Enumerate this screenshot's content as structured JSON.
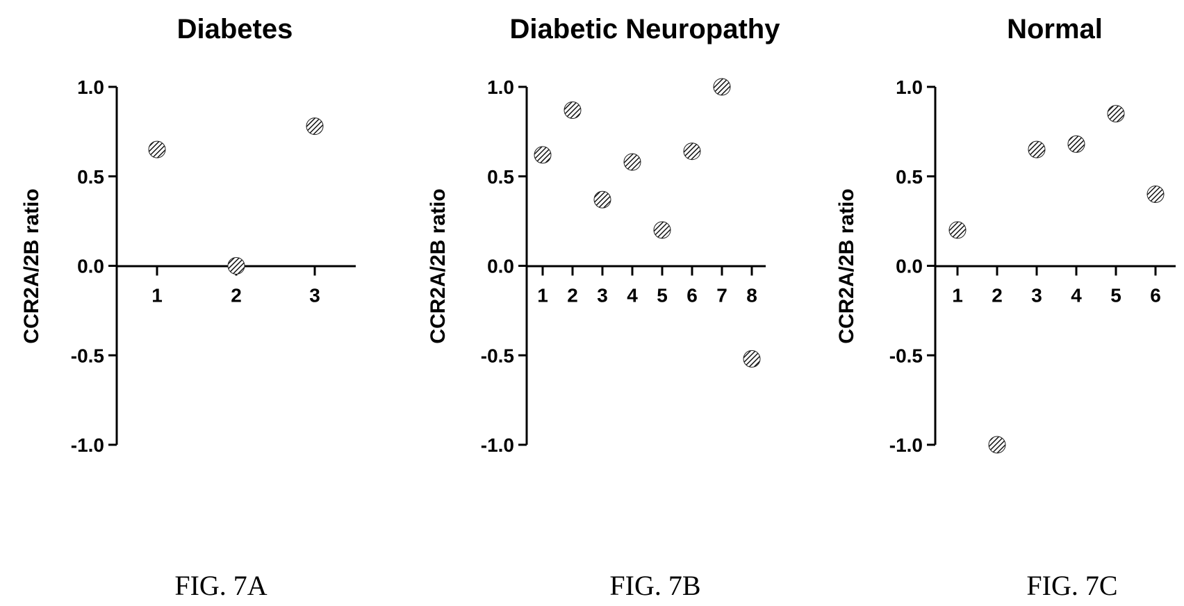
{
  "chart_data": [
    {
      "type": "scatter",
      "title": "Diabetes",
      "ylabel": "CCR2A/2B ratio",
      "xlabel": "",
      "x": [
        1,
        2,
        3
      ],
      "y": [
        0.65,
        0.0,
        0.78
      ],
      "ylim": [
        -1.0,
        1.0
      ],
      "yticks": [
        "1.0",
        "0.5",
        "0.0",
        "-0.5",
        "-1.0"
      ],
      "xticks": [
        "1",
        "2",
        "3"
      ],
      "caption": "FIG. 7A"
    },
    {
      "type": "scatter",
      "title": "Diabetic Neuropathy",
      "ylabel": "CCR2A/2B ratio",
      "xlabel": "",
      "x": [
        1,
        2,
        3,
        4,
        5,
        6,
        7,
        8
      ],
      "y": [
        0.62,
        0.87,
        0.37,
        0.58,
        0.2,
        0.64,
        1.0,
        -0.52
      ],
      "ylim": [
        -1.0,
        1.0
      ],
      "yticks": [
        "1.0",
        "0.5",
        "0.0",
        "-0.5",
        "-1.0"
      ],
      "xticks": [
        "1",
        "2",
        "3",
        "4",
        "5",
        "6",
        "7",
        "8"
      ],
      "caption": "FIG. 7B"
    },
    {
      "type": "scatter",
      "title": "Normal",
      "ylabel": "CCR2A/2B ratio",
      "xlabel": "",
      "x": [
        1,
        2,
        3,
        4,
        5,
        6
      ],
      "y": [
        0.2,
        -1.0,
        0.65,
        0.68,
        0.85,
        0.4
      ],
      "ylim": [
        -1.0,
        1.0
      ],
      "yticks": [
        "1.0",
        "0.5",
        "0.0",
        "-0.5",
        "-1.0"
      ],
      "xticks": [
        "1",
        "2",
        "3",
        "4",
        "5",
        "6"
      ],
      "caption": "FIG. 7C"
    }
  ]
}
